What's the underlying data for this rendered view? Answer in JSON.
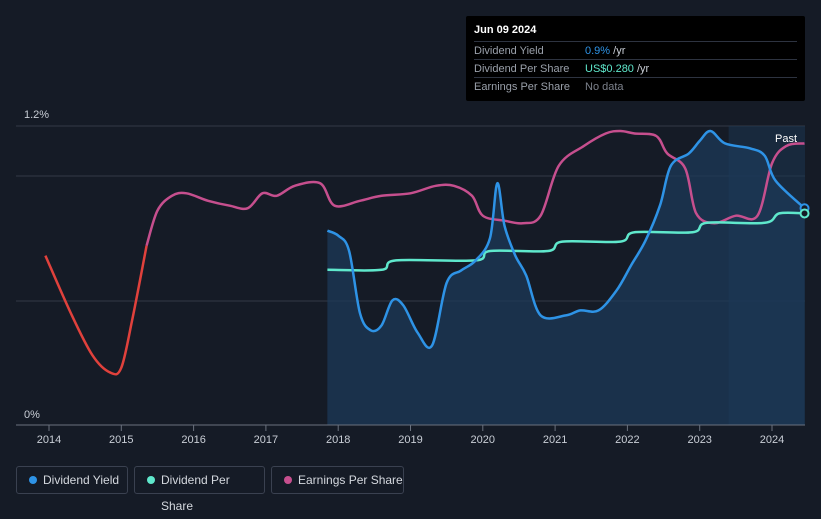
{
  "tooltip": {
    "date": "Jun 09 2024",
    "rows": [
      {
        "label": "Dividend Yield",
        "value": "0.9%",
        "suffix": " /yr",
        "color": "#2e93e6"
      },
      {
        "label": "Dividend Per Share",
        "value": "US$0.280",
        "suffix": " /yr",
        "color": "#5fe8cc"
      },
      {
        "label": "Earnings Per Share",
        "value": "No data",
        "suffix": "",
        "color": "#7d828c"
      }
    ]
  },
  "past_label": "Past",
  "legend": [
    {
      "label": "Dividend Yield",
      "color": "#2e93e6"
    },
    {
      "label": "Dividend Per Share",
      "color": "#5fe8cc"
    },
    {
      "label": "Earnings Per Share",
      "color": "#c64f8e"
    }
  ],
  "colors": {
    "background": "#151b26",
    "yield": "#2e93e6",
    "dps": "#5fe8cc",
    "eps": "#c64f8e",
    "eps_negative": "#e0413c",
    "forecast_band": "#1b3550"
  },
  "chart_data": {
    "type": "line",
    "x_ticks": [
      "2014",
      "2015",
      "2016",
      "2017",
      "2018",
      "2019",
      "2020",
      "2021",
      "2022",
      "2023",
      "2024"
    ],
    "y_ticks": [
      "0%",
      "1.2%"
    ],
    "xlim": [
      2013.55,
      2024.45
    ],
    "ylim": [
      0,
      1.2
    ],
    "grid": true,
    "series": [
      {
        "name": "Dividend Yield",
        "unit": "%",
        "values": [
          [
            2017.85,
            0.78
          ],
          [
            2018.0,
            0.76
          ],
          [
            2018.15,
            0.7
          ],
          [
            2018.3,
            0.45
          ],
          [
            2018.45,
            0.38
          ],
          [
            2018.6,
            0.4
          ],
          [
            2018.75,
            0.5
          ],
          [
            2018.9,
            0.48
          ],
          [
            2019.1,
            0.37
          ],
          [
            2019.3,
            0.32
          ],
          [
            2019.5,
            0.57
          ],
          [
            2019.7,
            0.62
          ],
          [
            2019.9,
            0.66
          ],
          [
            2020.1,
            0.75
          ],
          [
            2020.2,
            0.97
          ],
          [
            2020.3,
            0.8
          ],
          [
            2020.45,
            0.68
          ],
          [
            2020.6,
            0.6
          ],
          [
            2020.8,
            0.44
          ],
          [
            2021.15,
            0.44
          ],
          [
            2021.35,
            0.46
          ],
          [
            2021.6,
            0.46
          ],
          [
            2021.85,
            0.54
          ],
          [
            2022.05,
            0.64
          ],
          [
            2022.25,
            0.74
          ],
          [
            2022.45,
            0.88
          ],
          [
            2022.6,
            1.04
          ],
          [
            2022.85,
            1.09
          ],
          [
            2023.0,
            1.14
          ],
          [
            2023.15,
            1.18
          ],
          [
            2023.35,
            1.13
          ],
          [
            2023.7,
            1.11
          ],
          [
            2023.9,
            1.08
          ],
          [
            2024.05,
            0.98
          ],
          [
            2024.45,
            0.87
          ]
        ]
      },
      {
        "name": "Dividend Per Share",
        "unit": "US$",
        "values": [
          [
            2017.85,
            0.16
          ],
          [
            2018.6,
            0.16
          ],
          [
            2018.8,
            0.18
          ],
          [
            2019.9,
            0.18
          ],
          [
            2020.1,
            0.2
          ],
          [
            2020.9,
            0.2
          ],
          [
            2021.1,
            0.22
          ],
          [
            2021.9,
            0.22
          ],
          [
            2022.1,
            0.24
          ],
          [
            2022.9,
            0.24
          ],
          [
            2023.1,
            0.26
          ],
          [
            2023.9,
            0.26
          ],
          [
            2024.1,
            0.28
          ],
          [
            2024.45,
            0.28
          ]
        ]
      },
      {
        "name": "Earnings Per Share",
        "values": [
          [
            2013.95,
            0.68
          ],
          [
            2014.3,
            0.45
          ],
          [
            2014.6,
            0.28
          ],
          [
            2014.85,
            0.21
          ],
          [
            2015.0,
            0.23
          ],
          [
            2015.15,
            0.42
          ],
          [
            2015.35,
            0.72
          ],
          [
            2015.5,
            0.86
          ],
          [
            2015.7,
            0.92
          ],
          [
            2015.9,
            0.93
          ],
          [
            2016.2,
            0.9
          ],
          [
            2016.5,
            0.88
          ],
          [
            2016.75,
            0.87
          ],
          [
            2016.95,
            0.93
          ],
          [
            2017.15,
            0.92
          ],
          [
            2017.4,
            0.96
          ],
          [
            2017.75,
            0.97
          ],
          [
            2017.95,
            0.88
          ],
          [
            2018.3,
            0.9
          ],
          [
            2018.6,
            0.92
          ],
          [
            2019.0,
            0.93
          ],
          [
            2019.35,
            0.96
          ],
          [
            2019.6,
            0.96
          ],
          [
            2019.85,
            0.92
          ],
          [
            2020.0,
            0.84
          ],
          [
            2020.3,
            0.82
          ],
          [
            2020.55,
            0.81
          ],
          [
            2020.8,
            0.84
          ],
          [
            2021.05,
            1.04
          ],
          [
            2021.4,
            1.12
          ],
          [
            2021.7,
            1.17
          ],
          [
            2021.9,
            1.18
          ],
          [
            2022.1,
            1.17
          ],
          [
            2022.4,
            1.16
          ],
          [
            2022.55,
            1.09
          ],
          [
            2022.8,
            1.03
          ],
          [
            2022.95,
            0.85
          ],
          [
            2023.2,
            0.81
          ],
          [
            2023.5,
            0.84
          ],
          [
            2023.8,
            0.84
          ],
          [
            2024.0,
            1.05
          ],
          [
            2024.2,
            1.12
          ],
          [
            2024.45,
            1.13
          ]
        ]
      }
    ],
    "eps_negative_until": 2015.35,
    "dps_axis_max": 0.35,
    "past_region_start": 2023.4
  }
}
